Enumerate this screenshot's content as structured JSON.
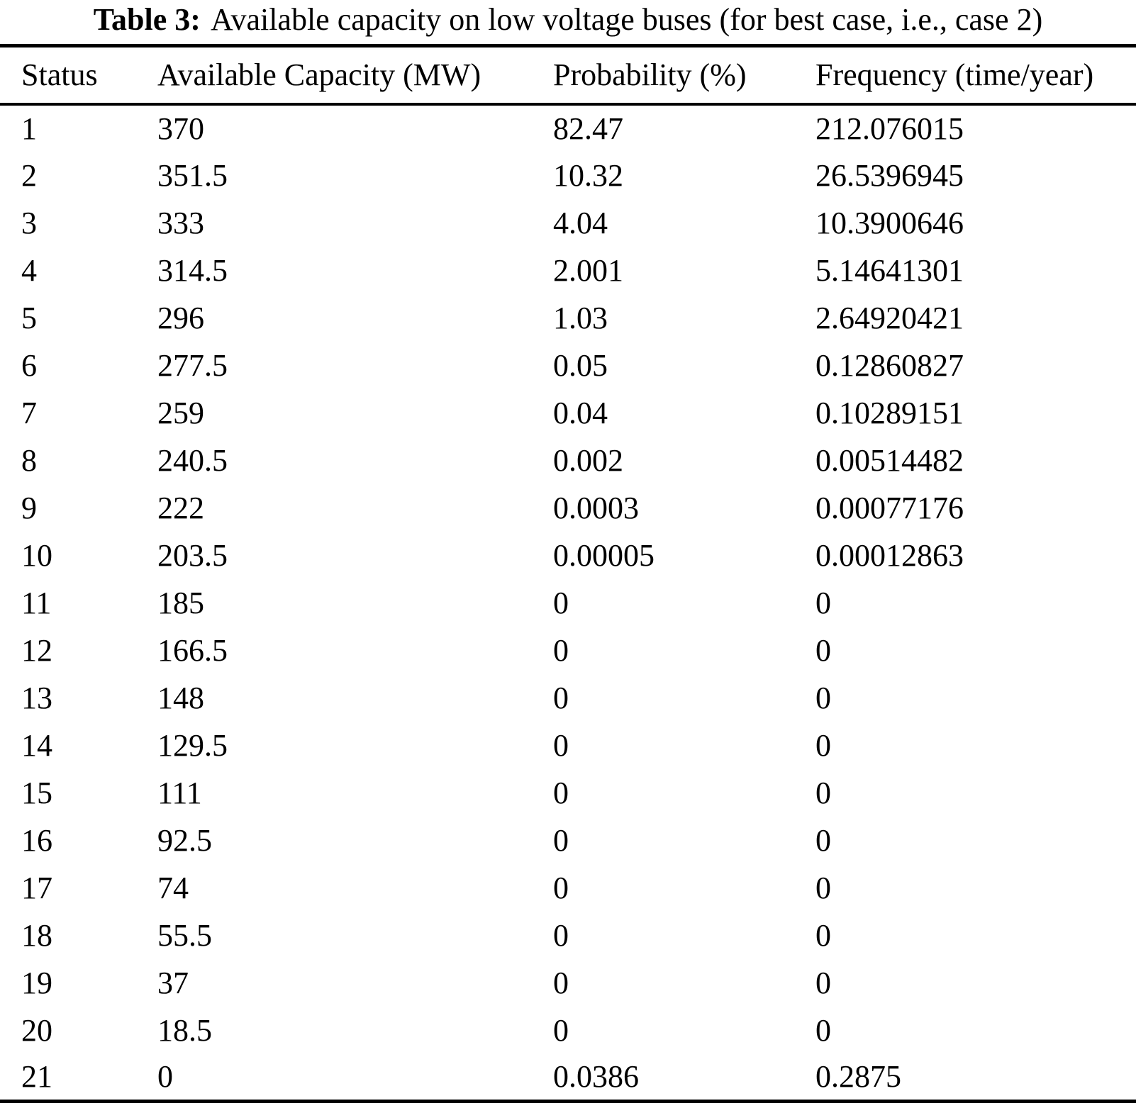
{
  "table": {
    "caption_label": "Table 3:",
    "caption_text": "Available capacity on low voltage buses (for best case, i.e., case 2)",
    "columns": [
      "Status",
      "Available Capacity (MW)",
      "Probability (%)",
      "Frequency (time/year)"
    ],
    "rows": [
      [
        "1",
        "370",
        "82.47",
        "212.076015"
      ],
      [
        "2",
        "351.5",
        "10.32",
        "26.5396945"
      ],
      [
        "3",
        "333",
        "4.04",
        "10.3900646"
      ],
      [
        "4",
        "314.5",
        "2.001",
        "5.14641301"
      ],
      [
        "5",
        "296",
        "1.03",
        "2.64920421"
      ],
      [
        "6",
        "277.5",
        "0.05",
        "0.12860827"
      ],
      [
        "7",
        "259",
        "0.04",
        "0.10289151"
      ],
      [
        "8",
        "240.5",
        "0.002",
        "0.00514482"
      ],
      [
        "9",
        "222",
        "0.0003",
        "0.00077176"
      ],
      [
        "10",
        "203.5",
        "0.00005",
        "0.00012863"
      ],
      [
        "11",
        "185",
        "0",
        "0"
      ],
      [
        "12",
        "166.5",
        "0",
        "0"
      ],
      [
        "13",
        "148",
        "0",
        "0"
      ],
      [
        "14",
        "129.5",
        "0",
        "0"
      ],
      [
        "15",
        "111",
        "0",
        "0"
      ],
      [
        "16",
        "92.5",
        "0",
        "0"
      ],
      [
        "17",
        "74",
        "0",
        "0"
      ],
      [
        "18",
        "55.5",
        "0",
        "0"
      ],
      [
        "19",
        "37",
        "0",
        "0"
      ],
      [
        "20",
        "18.5",
        "0",
        "0"
      ],
      [
        "21",
        "0",
        "0.0386",
        "0.2875"
      ]
    ]
  }
}
